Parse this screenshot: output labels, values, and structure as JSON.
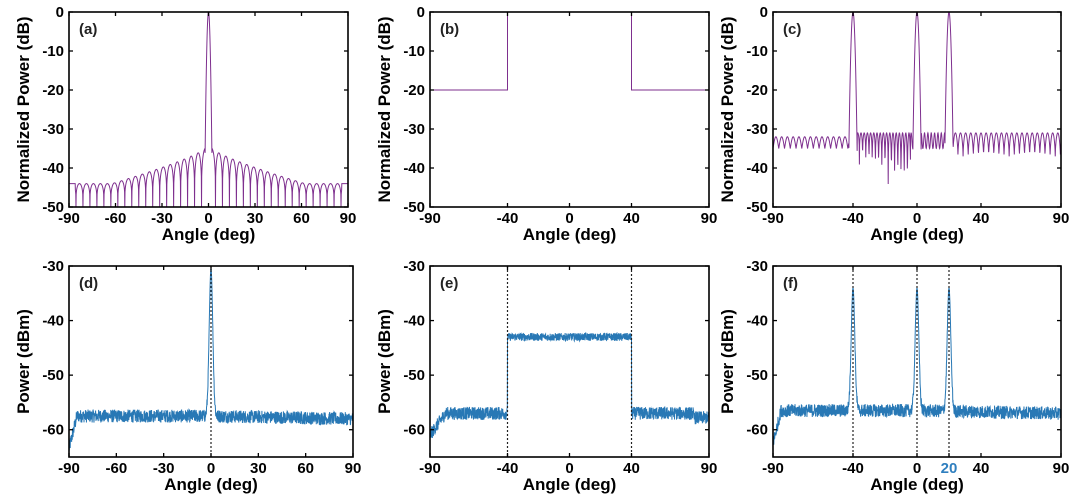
{
  "chart_data": [
    {
      "id": "a",
      "panel_label": "(a)",
      "type": "line",
      "xlabel": "Angle (deg)",
      "ylabel": "Normalized Power (dB)",
      "xlim": [
        -90,
        90
      ],
      "ylim": [
        -50,
        0
      ],
      "xticks": [
        -90,
        -60,
        -30,
        0,
        30,
        60,
        90
      ],
      "yticks": [
        0,
        -10,
        -20,
        -30,
        -40,
        -50
      ],
      "color": "#7e2f8e",
      "series": [
        {
          "shape": "sinc_array",
          "main_lobe_center": 0,
          "peak": 0,
          "sidelobe_near": -35,
          "sidelobe_far": -44
        }
      ]
    },
    {
      "id": "b",
      "panel_label": "(b)",
      "type": "line",
      "xlabel": "Angle (deg)",
      "ylabel": "Normalized Power (dB)",
      "xlim": [
        -90,
        90
      ],
      "ylim": [
        -50,
        0
      ],
      "xticks": [
        -90,
        -40,
        0,
        40,
        90
      ],
      "yticks": [
        0,
        -10,
        -20,
        -30,
        -40,
        -50
      ],
      "color": "#7e2f8e",
      "series": [
        {
          "x": [
            -90,
            -40,
            -40,
            40,
            40,
            90
          ],
          "y": [
            -20,
            -20,
            0,
            0,
            -20,
            -20
          ]
        }
      ]
    },
    {
      "id": "c",
      "panel_label": "(c)",
      "type": "line",
      "xlabel": "Angle (deg)",
      "ylabel": "Normalized Power (dB)",
      "xlim": [
        -90,
        90
      ],
      "ylim": [
        -50,
        0
      ],
      "xticks": [
        -90,
        -40,
        0,
        40,
        90
      ],
      "yticks": [
        0,
        -10,
        -20,
        -30,
        -40,
        -50
      ],
      "color": "#7e2f8e",
      "series": [
        {
          "shape": "multibeam",
          "beam_angles": [
            -40,
            0,
            20
          ],
          "peak": 0,
          "sidelobe_level": -31,
          "floor": -35
        }
      ]
    },
    {
      "id": "d",
      "panel_label": "(d)",
      "type": "line",
      "xlabel": "Angle (deg)",
      "ylabel": "Power (dBm)",
      "xlim": [
        -90,
        90
      ],
      "ylim": [
        -65,
        -30
      ],
      "xticks": [
        -90,
        -60,
        -30,
        0,
        30,
        60,
        90
      ],
      "yticks": [
        -30,
        -40,
        -50,
        -60
      ],
      "color": "#2878b5",
      "markers": [
        0
      ],
      "series": [
        {
          "shape": "measured_single",
          "beam_angles": [
            0
          ],
          "peak": -30.5,
          "floor": -56
        }
      ]
    },
    {
      "id": "e",
      "panel_label": "(e)",
      "type": "line",
      "xlabel": "Angle (deg)",
      "ylabel": "Power (dBm)",
      "xlim": [
        -90,
        90
      ],
      "ylim": [
        -65,
        -30
      ],
      "xticks": [
        -90,
        -40,
        0,
        40,
        90
      ],
      "yticks": [
        -30,
        -40,
        -50,
        -60
      ],
      "color": "#2878b5",
      "markers": [
        -40,
        40
      ],
      "series": [
        {
          "shape": "measured_flat",
          "flat_range": [
            -40,
            40
          ],
          "flat_level": -43,
          "floor": -57
        }
      ]
    },
    {
      "id": "f",
      "panel_label": "(f)",
      "type": "line",
      "xlabel": "Angle (deg)",
      "ylabel": "Power (dBm)",
      "xlim": [
        -90,
        90
      ],
      "ylim": [
        -65,
        -30
      ],
      "xticks": [
        -90,
        -40,
        0,
        40,
        90
      ],
      "yticks": [
        -30,
        -40,
        -50,
        -60
      ],
      "extra_tick": {
        "value": 20,
        "label": "20",
        "color": "#2f7fbf"
      },
      "color": "#2878b5",
      "markers": [
        -40,
        0,
        20
      ],
      "series": [
        {
          "shape": "measured_multi",
          "beam_angles": [
            -40,
            0,
            20
          ],
          "peak": -34,
          "floor": -55
        }
      ]
    }
  ]
}
